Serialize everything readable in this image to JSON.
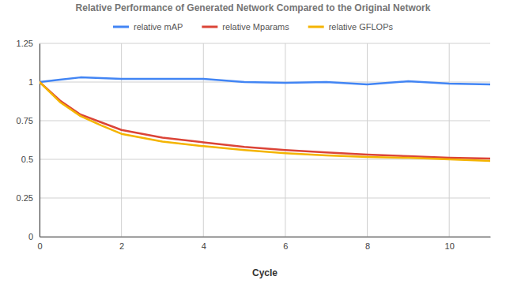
{
  "chart_data": {
    "type": "line",
    "title": "Relative Performance of Generated Network Compared to the Original Network",
    "x_label": "Cycle",
    "x": [
      0,
      0.5,
      1,
      1.5,
      2,
      3,
      4,
      5,
      6,
      7,
      8,
      9,
      10,
      11
    ],
    "series": [
      {
        "name": "relative mAP",
        "color": "#4285f4",
        "values": [
          1.0,
          1.015,
          1.03,
          1.025,
          1.02,
          1.02,
          1.02,
          1.0,
          0.995,
          1.0,
          0.985,
          1.005,
          0.99,
          0.985
        ]
      },
      {
        "name": "relative Mparams",
        "color": "#db4437",
        "values": [
          1.0,
          0.88,
          0.79,
          0.74,
          0.69,
          0.64,
          0.61,
          0.58,
          0.56,
          0.545,
          0.53,
          0.52,
          0.51,
          0.505
        ]
      },
      {
        "name": "relative GFLOPs",
        "color": "#f4b400",
        "values": [
          1.0,
          0.87,
          0.78,
          0.72,
          0.665,
          0.615,
          0.585,
          0.56,
          0.54,
          0.525,
          0.515,
          0.51,
          0.5,
          0.49
        ]
      }
    ],
    "xlim": [
      0,
      11
    ],
    "xticks": [
      0,
      2,
      4,
      6,
      8,
      10
    ],
    "ylim": [
      0,
      1.25
    ],
    "yticks": [
      0,
      0.25,
      0.5,
      0.75,
      1,
      1.25
    ],
    "grid": true,
    "legend": "top"
  }
}
